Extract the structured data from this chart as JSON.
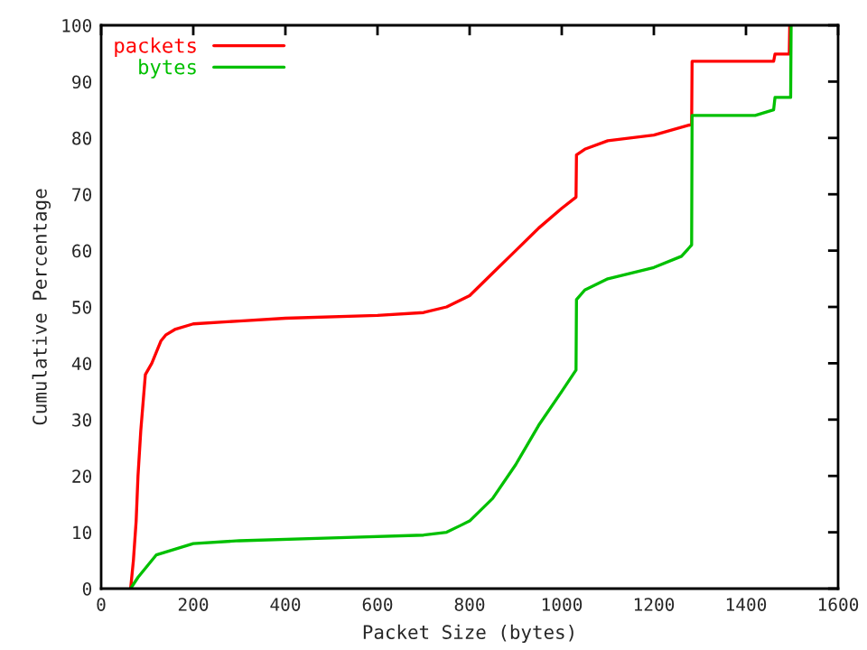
{
  "chart_data": {
    "type": "line",
    "xlabel": "Packet Size (bytes)",
    "ylabel": "Cumulative Percentage",
    "xlim": [
      0,
      1600
    ],
    "xticks": [
      0,
      200,
      400,
      600,
      800,
      1000,
      1200,
      1400,
      1600
    ],
    "ylim": [
      0,
      100
    ],
    "yticks": [
      0,
      10,
      20,
      30,
      40,
      50,
      60,
      70,
      80,
      90,
      100
    ],
    "grid": false,
    "legend": "top left",
    "series": [
      {
        "name": "packets",
        "color": "#ff0000",
        "x": [
          64,
          70,
          76,
          80,
          86,
          90,
          96,
          110,
          120,
          130,
          140,
          160,
          200,
          300,
          400,
          600,
          700,
          750,
          800,
          850,
          900,
          950,
          1000,
          1031,
          1032,
          1050,
          1100,
          1200,
          1282,
          1283,
          1460,
          1463,
          1494,
          1495
        ],
        "values": [
          0,
          5,
          12,
          20,
          28,
          32,
          38,
          40,
          42,
          44,
          45,
          46,
          47,
          47.5,
          48,
          48.5,
          49,
          50,
          52,
          56,
          60,
          64,
          67.5,
          69.5,
          77,
          78,
          79.5,
          80.5,
          82.4,
          93.6,
          93.6,
          94.9,
          94.9,
          100
        ]
      },
      {
        "name": "bytes",
        "color": "#00c000",
        "x": [
          64,
          80,
          100,
          120,
          160,
          200,
          300,
          500,
          700,
          750,
          800,
          850,
          900,
          950,
          1000,
          1031,
          1032,
          1050,
          1100,
          1200,
          1260,
          1282,
          1283,
          1420,
          1460,
          1463,
          1497,
          1498
        ],
        "values": [
          0,
          2,
          4,
          6,
          7,
          8,
          8.5,
          9,
          9.5,
          10,
          12,
          16,
          22,
          29,
          35,
          38.8,
          51.3,
          53,
          55,
          57,
          59,
          61,
          84,
          84,
          85,
          87.2,
          87.2,
          100
        ]
      }
    ]
  }
}
